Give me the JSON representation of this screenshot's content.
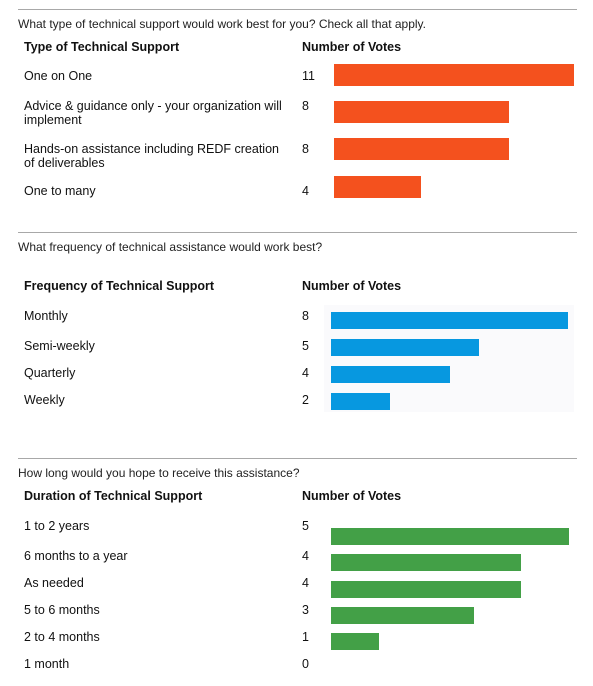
{
  "colors": {
    "section1": "#f4511e",
    "section2": "#0798e0",
    "section3": "#43a047"
  },
  "section1": {
    "question": "What type of technical support would work best for you? Check all that apply.",
    "col1": "Type of Technical Support",
    "col2": "Number of Votes"
  },
  "section2": {
    "question": "What frequency of technical assistance would work best?",
    "col1": "Frequency of Technical Support",
    "col2": "Number of Votes"
  },
  "section3": {
    "question": "How long would you hope to receive this assistance?",
    "col1": "Duration of Technical Support",
    "col2": "Number of Votes"
  },
  "chart_data": [
    {
      "type": "bar",
      "orientation": "horizontal",
      "categories": [
        "One on One",
        "Advice & guidance only - your organization will implement",
        "Hands-on assistance including REDF creation of deliverables",
        "One to many"
      ],
      "values": [
        11,
        8,
        8,
        4
      ],
      "labels": [
        "11",
        "8",
        "8",
        "4"
      ],
      "max": 11
    },
    {
      "type": "bar",
      "orientation": "horizontal",
      "categories": [
        "Monthly",
        "Semi-weekly",
        "Quarterly",
        "Weekly"
      ],
      "values": [
        8,
        5,
        4,
        2
      ],
      "labels": [
        "8",
        "5",
        "4",
        "2"
      ],
      "max": 8
    },
    {
      "type": "bar",
      "orientation": "horizontal",
      "categories": [
        "1 to 2 years",
        "6 months to a year",
        "As needed",
        "5 to 6 months",
        "2 to 4 months",
        "1 month"
      ],
      "values": [
        5,
        4,
        4,
        3,
        1,
        0
      ],
      "labels": [
        "5",
        "4",
        "4",
        "3",
        "1",
        "0"
      ],
      "max": 5
    }
  ]
}
